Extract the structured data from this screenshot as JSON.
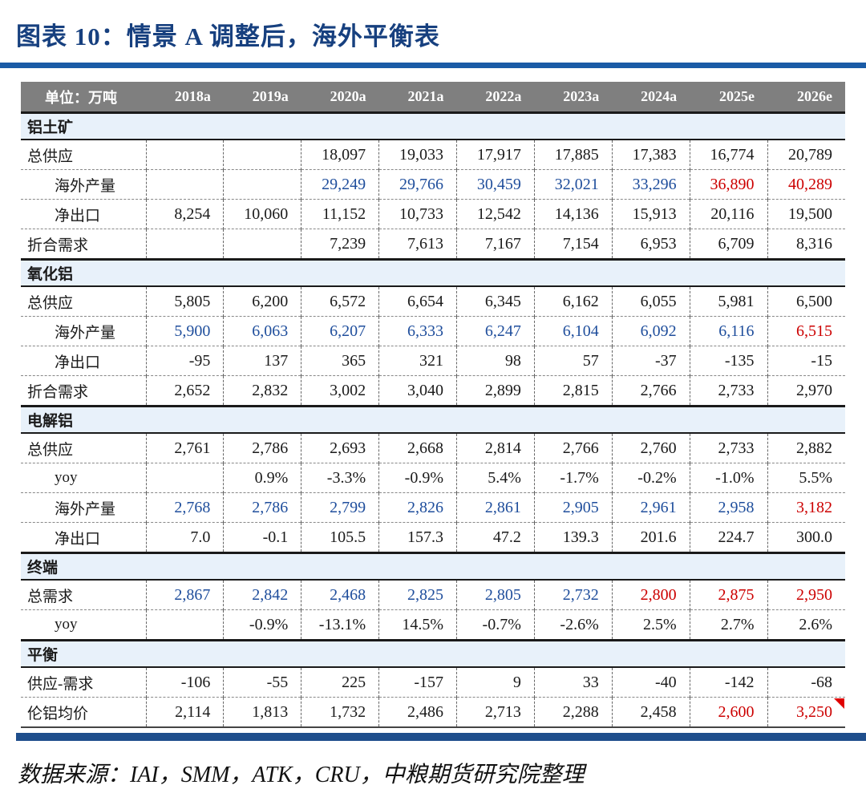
{
  "figure": {
    "title": "图表 10：情景 A 调整后，海外平衡表",
    "source_note": "数据来源：IAI，SMM，ATK，CRU，中粮期货研究院整理"
  },
  "colors": {
    "title_blue": "#17407f",
    "rule_blue": "#1a5ba6",
    "header_gray": "#7f7f7f",
    "section_bg": "#e8f1fa",
    "value_blue": "#1f4e9c",
    "value_red": "#cc0000",
    "bottom_bar_navy": "#1f4e8c",
    "flag_red": "#e00000"
  },
  "chart_data": {
    "type": "table",
    "title": "图表 10：情景 A 调整后，海外平衡表",
    "unit": "单位：万吨",
    "columns": [
      "2018a",
      "2019a",
      "2020a",
      "2021a",
      "2022a",
      "2023a",
      "2024a",
      "2025e",
      "2026e"
    ],
    "color_legend": {
      "k": "black",
      "b": "blue historical estimate",
      "r": "red forecast"
    },
    "sections": [
      {
        "name": "铝土矿",
        "rows": [
          {
            "label": "总供应",
            "indent": false,
            "values": [
              "",
              "",
              "18,097",
              "19,033",
              "17,917",
              "17,885",
              "17,383",
              "16,774",
              "20,789"
            ]
          },
          {
            "label": "海外产量",
            "indent": true,
            "values": [
              "",
              "",
              "29,249",
              "29,766",
              "30,459",
              "32,021",
              "33,296",
              "36,890",
              "40,289"
            ],
            "colors": [
              "k",
              "k",
              "b",
              "b",
              "b",
              "b",
              "b",
              "r",
              "r"
            ]
          },
          {
            "label": "净出口",
            "indent": true,
            "values": [
              "8,254",
              "10,060",
              "11,152",
              "10,733",
              "12,542",
              "14,136",
              "15,913",
              "20,116",
              "19,500"
            ]
          },
          {
            "label": "折合需求",
            "indent": false,
            "values": [
              "",
              "",
              "7,239",
              "7,613",
              "7,167",
              "7,154",
              "6,953",
              "6,709",
              "8,316"
            ]
          }
        ]
      },
      {
        "name": "氧化铝",
        "rows": [
          {
            "label": "总供应",
            "indent": false,
            "values": [
              "5,805",
              "6,200",
              "6,572",
              "6,654",
              "6,345",
              "6,162",
              "6,055",
              "5,981",
              "6,500"
            ]
          },
          {
            "label": "海外产量",
            "indent": true,
            "values": [
              "5,900",
              "6,063",
              "6,207",
              "6,333",
              "6,247",
              "6,104",
              "6,092",
              "6,116",
              "6,515"
            ],
            "colors": [
              "b",
              "b",
              "b",
              "b",
              "b",
              "b",
              "b",
              "b",
              "r"
            ]
          },
          {
            "label": "净出口",
            "indent": true,
            "values": [
              "-95",
              "137",
              "365",
              "321",
              "98",
              "57",
              "-37",
              "-135",
              "-15"
            ]
          },
          {
            "label": "折合需求",
            "indent": false,
            "values": [
              "2,652",
              "2,832",
              "3,002",
              "3,040",
              "2,899",
              "2,815",
              "2,766",
              "2,733",
              "2,970"
            ]
          }
        ]
      },
      {
        "name": "电解铝",
        "rows": [
          {
            "label": "总供应",
            "indent": false,
            "values": [
              "2,761",
              "2,786",
              "2,693",
              "2,668",
              "2,814",
              "2,766",
              "2,760",
              "2,733",
              "2,882"
            ]
          },
          {
            "label": "yoy",
            "indent": true,
            "values": [
              "",
              "0.9%",
              "-3.3%",
              "-0.9%",
              "5.4%",
              "-1.7%",
              "-0.2%",
              "-1.0%",
              "5.5%"
            ]
          },
          {
            "label": "海外产量",
            "indent": true,
            "values": [
              "2,768",
              "2,786",
              "2,799",
              "2,826",
              "2,861",
              "2,905",
              "2,961",
              "2,958",
              "3,182"
            ],
            "colors": [
              "b",
              "b",
              "b",
              "b",
              "b",
              "b",
              "b",
              "b",
              "r"
            ]
          },
          {
            "label": "净出口",
            "indent": true,
            "values": [
              "7.0",
              "-0.1",
              "105.5",
              "157.3",
              "47.2",
              "139.3",
              "201.6",
              "224.7",
              "300.0"
            ]
          }
        ]
      },
      {
        "name": "终端",
        "rows": [
          {
            "label": "总需求",
            "indent": false,
            "values": [
              "2,867",
              "2,842",
              "2,468",
              "2,825",
              "2,805",
              "2,732",
              "2,800",
              "2,875",
              "2,950"
            ],
            "colors": [
              "b",
              "b",
              "b",
              "b",
              "b",
              "b",
              "r",
              "r",
              "r"
            ]
          },
          {
            "label": "yoy",
            "indent": true,
            "values": [
              "",
              "-0.9%",
              "-13.1%",
              "14.5%",
              "-0.7%",
              "-2.6%",
              "2.5%",
              "2.7%",
              "2.6%"
            ]
          }
        ]
      },
      {
        "name": "平衡",
        "rows": [
          {
            "label": "供应-需求",
            "indent": false,
            "values": [
              "-106",
              "-55",
              "225",
              "-157",
              "9",
              "33",
              "-40",
              "-142",
              "-68"
            ]
          },
          {
            "label": "伦铝均价",
            "indent": false,
            "values": [
              "2,114",
              "1,813",
              "1,732",
              "2,486",
              "2,713",
              "2,288",
              "2,458",
              "2,600",
              "3,250"
            ],
            "colors": [
              "k",
              "k",
              "k",
              "k",
              "k",
              "k",
              "k",
              "r",
              "r"
            ],
            "corner_flag_col": 8
          }
        ]
      }
    ]
  }
}
